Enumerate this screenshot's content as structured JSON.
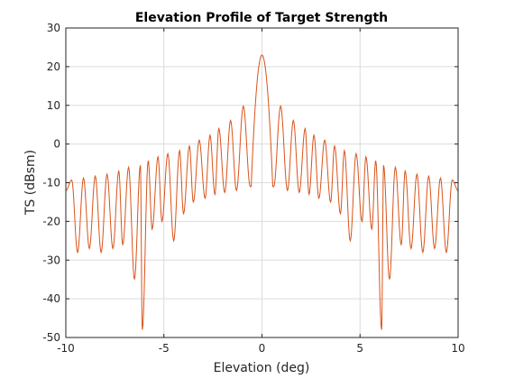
{
  "chart_data": {
    "type": "line",
    "title": "Elevation Profile of Target Strength",
    "xlabel": "Elevation (deg)",
    "ylabel": "TS (dBsm)",
    "xlim": [
      -10,
      10
    ],
    "ylim": [
      -50,
      30
    ],
    "x_ticks": [
      "-10",
      "-5",
      "0",
      "5",
      "10"
    ],
    "y_ticks": [
      "30",
      "20",
      "10",
      "0",
      "-10",
      "-20",
      "-30",
      "-40",
      "-50"
    ],
    "grid": true,
    "legend": "none",
    "series_color": "#d95319",
    "series": [
      {
        "peak_value": 23,
        "sidelobe_peaks": [
          [
            0.95,
            9.8
          ],
          [
            1.6,
            6.1
          ],
          [
            2.2,
            4.0
          ],
          [
            2.65,
            2.3
          ],
          [
            3.2,
            1.0
          ],
          [
            3.7,
            -0.5
          ],
          [
            4.2,
            -1.7
          ],
          [
            4.8,
            -2.5
          ],
          [
            5.3,
            -3.3
          ],
          [
            5.8,
            -4.3
          ],
          [
            6.2,
            -5.5
          ],
          [
            6.8,
            -6.0
          ],
          [
            7.3,
            -7.0
          ],
          [
            7.9,
            -7.8
          ],
          [
            8.5,
            -8.3
          ],
          [
            9.1,
            -8.8
          ],
          [
            9.7,
            -9.3
          ]
        ],
        "null_depths": [
          [
            0.6,
            -11
          ],
          [
            1.3,
            -12
          ],
          [
            1.9,
            -12.5
          ],
          [
            2.4,
            -13
          ],
          [
            2.9,
            -14
          ],
          [
            3.5,
            -15
          ],
          [
            4.0,
            -18
          ],
          [
            4.5,
            -25
          ],
          [
            5.1,
            -20
          ],
          [
            5.6,
            -22
          ],
          [
            6.1,
            -48
          ],
          [
            6.5,
            -35
          ],
          [
            7.1,
            -26
          ],
          [
            7.6,
            -27
          ],
          [
            8.2,
            -28
          ],
          [
            8.8,
            -27
          ],
          [
            9.4,
            -28
          ],
          [
            10.0,
            -12
          ]
        ]
      }
    ]
  }
}
